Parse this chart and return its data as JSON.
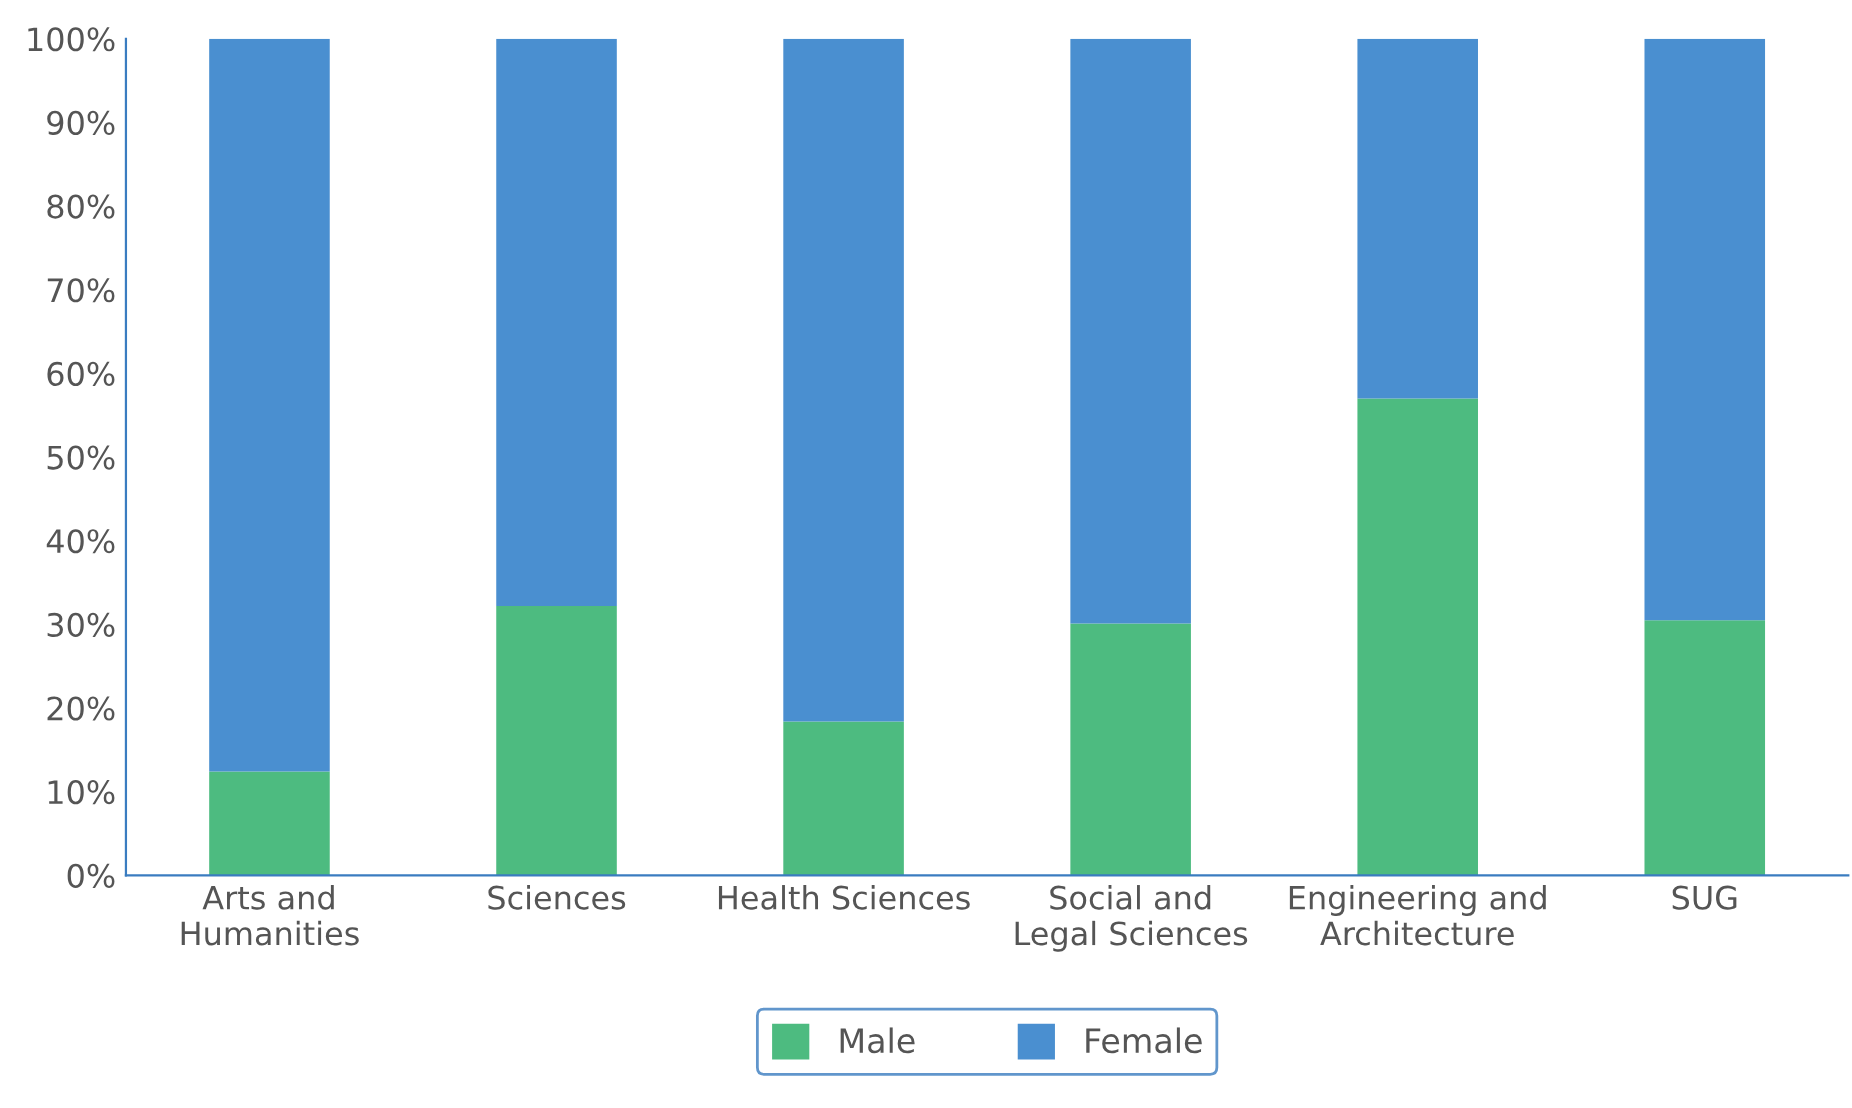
{
  "chart_data": {
    "type": "bar",
    "stacked": true,
    "categories": [
      "Arts and\nHumanities",
      "Sciences",
      "Health Sciences",
      "Social and\nLegal Sciences",
      "Engineering and\nArchitecture",
      "SUG"
    ],
    "series": [
      {
        "name": "Male",
        "color": "#4dbb80",
        "values": [
          12.4,
          32.2,
          18.4,
          30.1,
          57.0,
          30.5
        ]
      },
      {
        "name": "Female",
        "color": "#4a8fd0",
        "values": [
          87.6,
          67.8,
          81.6,
          69.9,
          43.0,
          69.5
        ]
      }
    ],
    "ylim": [
      0,
      100
    ],
    "yticks": [
      {
        "value": 0,
        "label": "0%"
      },
      {
        "value": 10,
        "label": "10%"
      },
      {
        "value": 20,
        "label": "20%"
      },
      {
        "value": 30,
        "label": "30%"
      },
      {
        "value": 40,
        "label": "40%"
      },
      {
        "value": 50,
        "label": "50%"
      },
      {
        "value": 60,
        "label": "60%"
      },
      {
        "value": 70,
        "label": "70%"
      },
      {
        "value": 80,
        "label": "80%"
      },
      {
        "value": 90,
        "label": "90%"
      },
      {
        "value": 100,
        "label": "100%"
      }
    ],
    "grid": false,
    "legend": "bottom"
  }
}
